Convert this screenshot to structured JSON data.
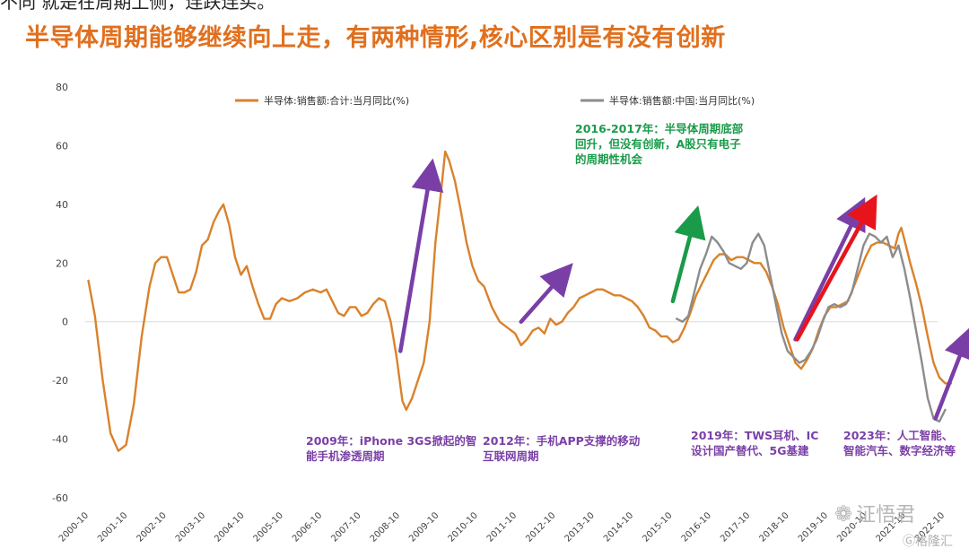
{
  "header": {
    "cut_text": "不同 就是在周期上侧，连跌连买。",
    "headline": "半导体周期能够继续向上走，有两种情形,核心区别是有没有创新"
  },
  "watermark": {
    "main": "证悟君",
    "small": "格隆汇",
    "icon": "wechat-icon"
  },
  "colors": {
    "orange": "#d9822b",
    "gray": "#8c8c8c",
    "purple": "#7a3fa6",
    "green": "#1a9b4a",
    "red": "#e8141c",
    "annotation_purple": "#7a3fa6",
    "annotation_green": "#1a9b4a",
    "headline": "#e0701f"
  },
  "chart_data": {
    "type": "line",
    "ylim": [
      -60,
      80
    ],
    "yticks": [
      80,
      60,
      40,
      20,
      0,
      -20,
      -40,
      -60
    ],
    "xlim": [
      2000.75,
      2023.0
    ],
    "xticks": [
      "2000-10",
      "2001-10",
      "2002-10",
      "2003-10",
      "2004-10",
      "2005-10",
      "2006-10",
      "2007-10",
      "2008-10",
      "2009-10",
      "2010-10",
      "2011-10",
      "2012-10",
      "2013-10",
      "2014-10",
      "2015-10",
      "2016-10",
      "2017-10",
      "2018-10",
      "2019-10",
      "2020-10",
      "2021-10",
      "2022-10"
    ],
    "grid": false,
    "legend_position": "top",
    "series": [
      {
        "name": "半导体:销售额:合计:当月同比(%)",
        "color": "#d9822b",
        "points": [
          [
            2000.83,
            14
          ],
          [
            2001.0,
            2
          ],
          [
            2001.2,
            -20
          ],
          [
            2001.4,
            -38
          ],
          [
            2001.6,
            -44
          ],
          [
            2001.8,
            -42
          ],
          [
            2002.0,
            -28
          ],
          [
            2002.2,
            -5
          ],
          [
            2002.4,
            12
          ],
          [
            2002.55,
            20
          ],
          [
            2002.7,
            22
          ],
          [
            2002.85,
            22
          ],
          [
            2003.0,
            16
          ],
          [
            2003.15,
            10
          ],
          [
            2003.3,
            10
          ],
          [
            2003.45,
            11
          ],
          [
            2003.6,
            17
          ],
          [
            2003.75,
            26
          ],
          [
            2003.9,
            28
          ],
          [
            2004.05,
            34
          ],
          [
            2004.2,
            38
          ],
          [
            2004.3,
            40
          ],
          [
            2004.45,
            33
          ],
          [
            2004.6,
            22
          ],
          [
            2004.75,
            16
          ],
          [
            2004.9,
            19
          ],
          [
            2005.05,
            12
          ],
          [
            2005.2,
            6
          ],
          [
            2005.35,
            1
          ],
          [
            2005.5,
            1
          ],
          [
            2005.65,
            6
          ],
          [
            2005.8,
            8
          ],
          [
            2006.0,
            7
          ],
          [
            2006.2,
            8
          ],
          [
            2006.4,
            10
          ],
          [
            2006.6,
            11
          ],
          [
            2006.8,
            10
          ],
          [
            2006.95,
            11
          ],
          [
            2007.1,
            7
          ],
          [
            2007.25,
            3
          ],
          [
            2007.4,
            2
          ],
          [
            2007.55,
            5
          ],
          [
            2007.7,
            5
          ],
          [
            2007.85,
            2
          ],
          [
            2008.0,
            3
          ],
          [
            2008.15,
            6
          ],
          [
            2008.3,
            8
          ],
          [
            2008.45,
            7
          ],
          [
            2008.6,
            0
          ],
          [
            2008.75,
            -12
          ],
          [
            2008.9,
            -27
          ],
          [
            2009.0,
            -30
          ],
          [
            2009.15,
            -26
          ],
          [
            2009.3,
            -20
          ],
          [
            2009.45,
            -14
          ],
          [
            2009.6,
            0
          ],
          [
            2009.75,
            27
          ],
          [
            2009.9,
            45
          ],
          [
            2010.0,
            58
          ],
          [
            2010.1,
            55
          ],
          [
            2010.25,
            48
          ],
          [
            2010.4,
            38
          ],
          [
            2010.55,
            27
          ],
          [
            2010.7,
            19
          ],
          [
            2010.85,
            14
          ],
          [
            2011.0,
            12
          ],
          [
            2011.2,
            5
          ],
          [
            2011.4,
            0
          ],
          [
            2011.6,
            -2
          ],
          [
            2011.8,
            -4
          ],
          [
            2011.95,
            -8
          ],
          [
            2012.1,
            -6
          ],
          [
            2012.25,
            -3
          ],
          [
            2012.4,
            -2
          ],
          [
            2012.55,
            -4
          ],
          [
            2012.7,
            1
          ],
          [
            2012.85,
            -1
          ],
          [
            2013.0,
            0
          ],
          [
            2013.15,
            3
          ],
          [
            2013.3,
            5
          ],
          [
            2013.45,
            8
          ],
          [
            2013.6,
            9
          ],
          [
            2013.75,
            10
          ],
          [
            2013.9,
            11
          ],
          [
            2014.05,
            11
          ],
          [
            2014.2,
            10
          ],
          [
            2014.35,
            9
          ],
          [
            2014.5,
            9
          ],
          [
            2014.65,
            8
          ],
          [
            2014.8,
            7
          ],
          [
            2014.95,
            5
          ],
          [
            2015.1,
            2
          ],
          [
            2015.25,
            -2
          ],
          [
            2015.4,
            -3
          ],
          [
            2015.55,
            -5
          ],
          [
            2015.7,
            -5
          ],
          [
            2015.85,
            -7
          ],
          [
            2016.0,
            -6
          ],
          [
            2016.15,
            -2
          ],
          [
            2016.3,
            3
          ],
          [
            2016.45,
            9
          ],
          [
            2016.6,
            13
          ],
          [
            2016.75,
            17
          ],
          [
            2016.9,
            21
          ],
          [
            2017.05,
            23
          ],
          [
            2017.2,
            23
          ],
          [
            2017.35,
            21
          ],
          [
            2017.5,
            22
          ],
          [
            2017.65,
            22
          ],
          [
            2017.8,
            21
          ],
          [
            2017.95,
            20
          ],
          [
            2018.1,
            20
          ],
          [
            2018.25,
            17
          ],
          [
            2018.4,
            12
          ],
          [
            2018.55,
            6
          ],
          [
            2018.7,
            -2
          ],
          [
            2018.85,
            -8
          ],
          [
            2019.0,
            -14
          ],
          [
            2019.15,
            -16
          ],
          [
            2019.3,
            -13
          ],
          [
            2019.45,
            -9
          ],
          [
            2019.6,
            -3
          ],
          [
            2019.75,
            2
          ],
          [
            2019.9,
            5
          ],
          [
            2020.05,
            5
          ],
          [
            2020.2,
            6
          ],
          [
            2020.35,
            7
          ],
          [
            2020.5,
            12
          ],
          [
            2020.65,
            17
          ],
          [
            2020.8,
            22
          ],
          [
            2020.95,
            26
          ],
          [
            2021.1,
            27
          ],
          [
            2021.25,
            27
          ],
          [
            2021.4,
            26
          ],
          [
            2021.55,
            25
          ],
          [
            2021.65,
            30
          ],
          [
            2021.72,
            32
          ],
          [
            2021.8,
            28
          ],
          [
            2021.95,
            20
          ],
          [
            2022.1,
            13
          ],
          [
            2022.25,
            5
          ],
          [
            2022.4,
            -5
          ],
          [
            2022.55,
            -14
          ],
          [
            2022.7,
            -19
          ],
          [
            2022.85,
            -21
          ],
          [
            2023.0,
            -21
          ]
        ]
      },
      {
        "name": "半导体:销售额:中国:当月同比(%)",
        "color": "#8c8c8c",
        "points": [
          [
            2015.95,
            1
          ],
          [
            2016.1,
            0
          ],
          [
            2016.25,
            2
          ],
          [
            2016.4,
            10
          ],
          [
            2016.55,
            18
          ],
          [
            2016.7,
            23
          ],
          [
            2016.85,
            29
          ],
          [
            2017.0,
            27
          ],
          [
            2017.15,
            24
          ],
          [
            2017.3,
            20
          ],
          [
            2017.45,
            19
          ],
          [
            2017.6,
            18
          ],
          [
            2017.75,
            20
          ],
          [
            2017.9,
            27
          ],
          [
            2018.05,
            30
          ],
          [
            2018.2,
            26
          ],
          [
            2018.35,
            16
          ],
          [
            2018.5,
            6
          ],
          [
            2018.65,
            -4
          ],
          [
            2018.8,
            -10
          ],
          [
            2018.95,
            -12
          ],
          [
            2019.1,
            -14
          ],
          [
            2019.25,
            -13
          ],
          [
            2019.4,
            -10
          ],
          [
            2019.55,
            -6
          ],
          [
            2019.7,
            0
          ],
          [
            2019.85,
            5
          ],
          [
            2020.0,
            6
          ],
          [
            2020.15,
            5
          ],
          [
            2020.3,
            6
          ],
          [
            2020.45,
            10
          ],
          [
            2020.6,
            18
          ],
          [
            2020.75,
            26
          ],
          [
            2020.9,
            30
          ],
          [
            2021.05,
            29
          ],
          [
            2021.2,
            27
          ],
          [
            2021.35,
            29
          ],
          [
            2021.5,
            22
          ],
          [
            2021.65,
            26
          ],
          [
            2021.8,
            18
          ],
          [
            2021.95,
            8
          ],
          [
            2022.1,
            -3
          ],
          [
            2022.25,
            -14
          ],
          [
            2022.4,
            -26
          ],
          [
            2022.55,
            -33
          ],
          [
            2022.7,
            -34
          ],
          [
            2022.85,
            -30
          ]
        ]
      }
    ],
    "legend": [
      {
        "label": "半导体:销售额:合计:当月同比(%)",
        "color": "#d9822b"
      },
      {
        "label": "半导体:销售额:中国:当月同比(%)",
        "color": "#8c8c8c"
      }
    ],
    "annotations": [
      {
        "id": "ann-2016",
        "lines": [
          "2016-2017年：半导体周期底部",
          "回升，但没有创新，A股只有电子",
          "的周期性机会"
        ],
        "color": "#1a9b4a"
      },
      {
        "id": "ann-2009",
        "lines": [
          "2009年：iPhone 3GS掀起的智",
          "能手机渗透周期"
        ],
        "color": "#7a3fa6"
      },
      {
        "id": "ann-2012",
        "lines": [
          "2012年：手机APP支撑的移动",
          "互联网周期"
        ],
        "color": "#7a3fa6"
      },
      {
        "id": "ann-2019",
        "lines": [
          "2019年：TWS耳机、IC",
          "设计国产替代、5G基建"
        ],
        "color": "#7a3fa6"
      },
      {
        "id": "ann-2023",
        "lines": [
          "2023年：人工智能、",
          "智能汽车、数字经济等"
        ],
        "color": "#7a3fa6"
      }
    ],
    "arrows": [
      {
        "name": "arrow-2009",
        "from": [
          2008.85,
          -10
        ],
        "to": [
          2009.65,
          53
        ],
        "color": "#7a3fa6"
      },
      {
        "name": "arrow-2012",
        "from": [
          2011.95,
          0
        ],
        "to": [
          2013.15,
          18
        ],
        "color": "#7a3fa6"
      },
      {
        "name": "arrow-2016",
        "from": [
          2015.85,
          7
        ],
        "to": [
          2016.45,
          37
        ],
        "color": "#1a9b4a"
      },
      {
        "name": "arrow-2019-purple",
        "from": [
          2019.0,
          -6
        ],
        "to": [
          2020.7,
          40
        ],
        "color": "#7a3fa6"
      },
      {
        "name": "arrow-2019-red",
        "from": [
          2019.05,
          -6
        ],
        "to": [
          2021.0,
          41
        ],
        "color": "#e8141c"
      },
      {
        "name": "arrow-2023",
        "from": [
          2022.6,
          -33
        ],
        "to": [
          2023.45,
          -4
        ],
        "color": "#7a3fa6"
      }
    ]
  }
}
